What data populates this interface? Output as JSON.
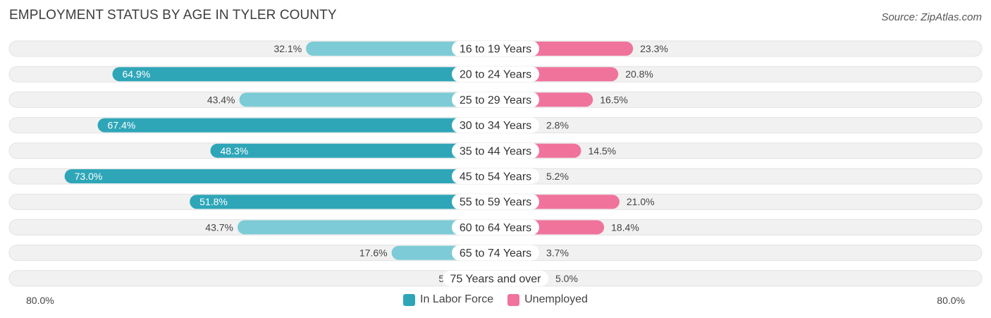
{
  "title": "EMPLOYMENT STATUS BY AGE IN TYLER COUNTY",
  "source": "Source: ZipAtlas.com",
  "colors": {
    "labor_strong": "#2ea6b8",
    "labor_light": "#7ccbd6",
    "unemp_strong": "#f0739b",
    "unemp_light": "#f7a9c1",
    "row_bg": "#f1f1f1"
  },
  "axis": {
    "left_label": "80.0%",
    "right_label": "80.0%"
  },
  "legend": [
    {
      "label": "In Labor Force",
      "color": "#2ea6b8"
    },
    {
      "label": "Unemployed",
      "color": "#f0739b"
    }
  ],
  "chart_data": {
    "type": "bar",
    "orientation": "diverging-horizontal",
    "xlim": [
      -80,
      80
    ],
    "categories": [
      "16 to 19 Years",
      "20 to 24 Years",
      "25 to 29 Years",
      "30 to 34 Years",
      "35 to 44 Years",
      "45 to 54 Years",
      "55 to 59 Years",
      "60 to 64 Years",
      "65 to 74 Years",
      "75 Years and over"
    ],
    "series": [
      {
        "name": "In Labor Force",
        "side": "left",
        "values": [
          32.1,
          64.9,
          43.4,
          67.4,
          48.3,
          73.0,
          51.8,
          43.7,
          17.6,
          5.1
        ],
        "labels": [
          "32.1%",
          "64.9%",
          "43.4%",
          "67.4%",
          "48.3%",
          "73.0%",
          "51.8%",
          "43.7%",
          "17.6%",
          "5.1%"
        ]
      },
      {
        "name": "Unemployed",
        "side": "right",
        "values": [
          23.3,
          20.8,
          16.5,
          2.8,
          14.5,
          5.2,
          21.0,
          18.4,
          3.7,
          5.0
        ],
        "labels": [
          "23.3%",
          "20.8%",
          "16.5%",
          "2.8%",
          "14.5%",
          "5.2%",
          "21.0%",
          "18.4%",
          "3.7%",
          "5.0%"
        ]
      }
    ],
    "legend_position": "bottom"
  }
}
